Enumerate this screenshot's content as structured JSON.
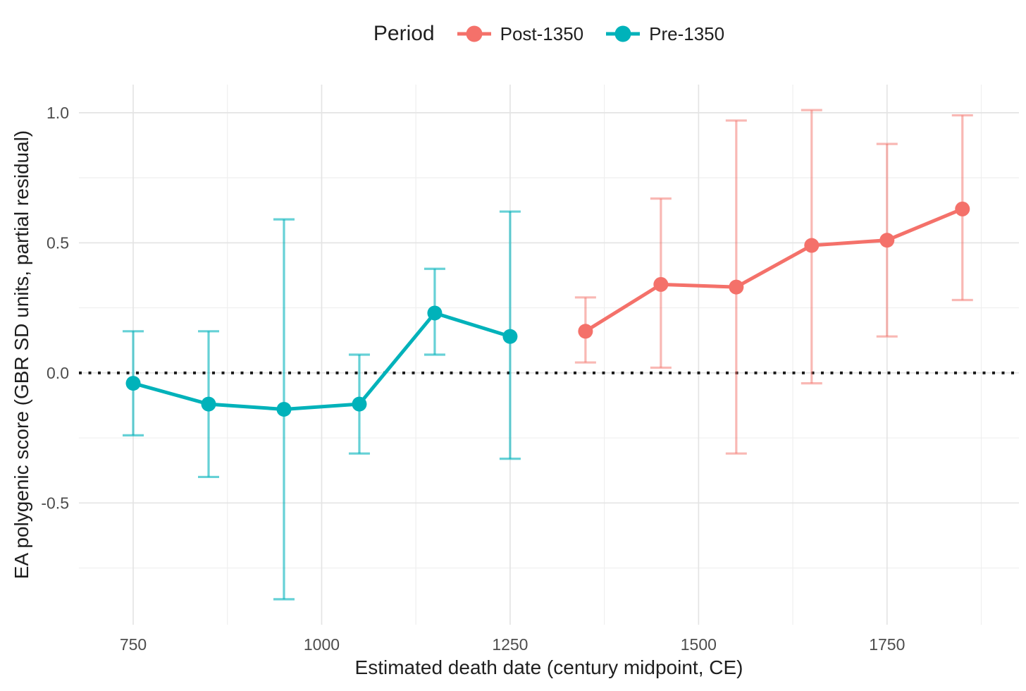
{
  "figure": {
    "background": "#ffffff"
  },
  "legend": {
    "title": "Period",
    "items": [
      {
        "label": "Post-1350",
        "color": "#f4716a"
      },
      {
        "label": "Pre-1350",
        "color": "#00b2ba"
      }
    ]
  },
  "chart_data": {
    "type": "line",
    "title": "",
    "xlabel": "Estimated death date (century midpoint, CE)",
    "ylabel": "EA polygenic score (GBR SD units, partial residual)",
    "x_domain": [
      678,
      1925
    ],
    "y_domain": [
      -0.968,
      1.108
    ],
    "x_ticks": {
      "values": [
        750,
        1000,
        1250,
        1500,
        1750
      ],
      "labels": [
        "750",
        "1000",
        "1250",
        "1500",
        "1750"
      ]
    },
    "x_minor": [
      875,
      1125,
      1375,
      1625,
      1875
    ],
    "y_ticks": {
      "values": [
        1.0,
        0.5,
        0.0,
        -0.5
      ],
      "labels": [
        "1.0",
        "0.5",
        "0.0",
        "-0.5"
      ]
    },
    "y_minor": [
      0.75,
      0.25,
      -0.25,
      -0.75
    ],
    "reference_line": {
      "y": 0,
      "style": "dotted",
      "color": "#1a1a1a"
    },
    "grid": {
      "major_color": "#e4e4e4",
      "minor_color": "#efefef"
    },
    "text_colors": {
      "tick": "#4d4d4d",
      "title": "#1f1f1f"
    },
    "series": [
      {
        "name": "Pre-1350",
        "color": "#00b2ba",
        "error_color": "rgba(0,178,186,0.6)",
        "points": [
          {
            "x": 750,
            "y": -0.04,
            "lo": -0.24,
            "hi": 0.16
          },
          {
            "x": 850,
            "y": -0.12,
            "lo": -0.4,
            "hi": 0.16
          },
          {
            "x": 950,
            "y": -0.14,
            "lo": -0.87,
            "hi": 0.59
          },
          {
            "x": 1050,
            "y": -0.12,
            "lo": -0.31,
            "hi": 0.07
          },
          {
            "x": 1150,
            "y": 0.23,
            "lo": 0.07,
            "hi": 0.4
          },
          {
            "x": 1250,
            "y": 0.14,
            "lo": -0.33,
            "hi": 0.62
          }
        ]
      },
      {
        "name": "Post-1350",
        "color": "#f4716a",
        "error_color": "rgba(244,113,106,0.5)",
        "points": [
          {
            "x": 1350,
            "y": 0.16,
            "lo": 0.04,
            "hi": 0.29
          },
          {
            "x": 1450,
            "y": 0.34,
            "lo": 0.02,
            "hi": 0.67
          },
          {
            "x": 1550,
            "y": 0.33,
            "lo": -0.31,
            "hi": 0.97
          },
          {
            "x": 1650,
            "y": 0.49,
            "lo": -0.04,
            "hi": 1.01
          },
          {
            "x": 1750,
            "y": 0.51,
            "lo": 0.14,
            "hi": 0.88
          },
          {
            "x": 1850,
            "y": 0.63,
            "lo": 0.28,
            "hi": 0.99
          }
        ]
      }
    ]
  }
}
